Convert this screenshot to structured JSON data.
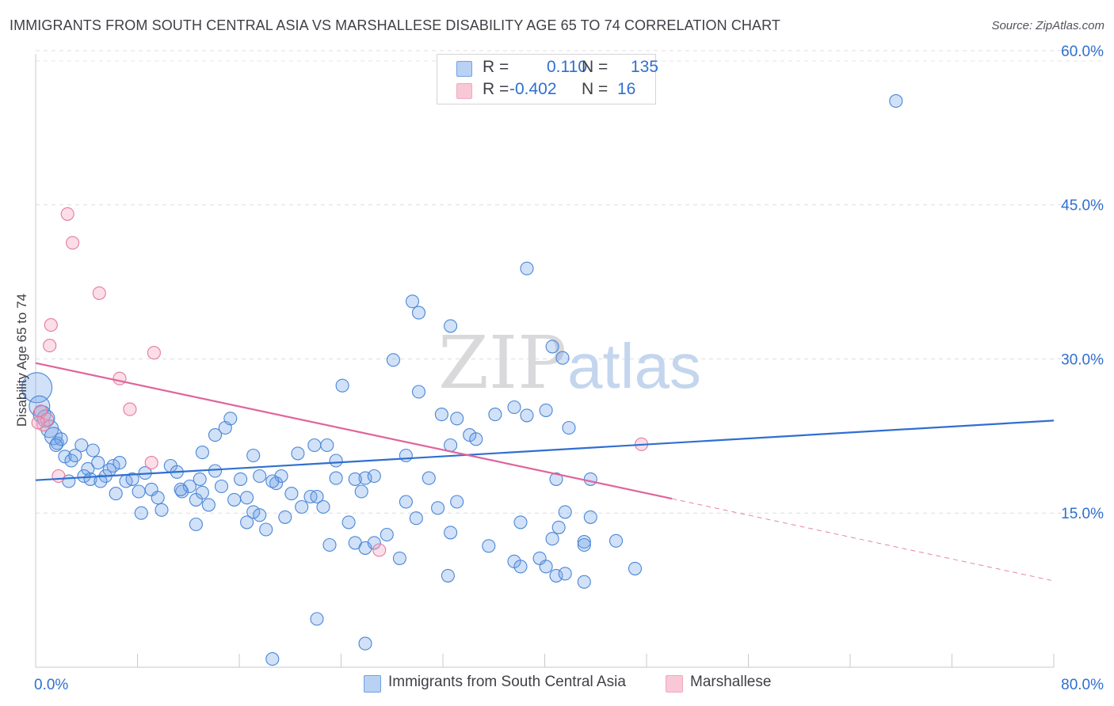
{
  "chart_data": {
    "type": "scatter",
    "title": "IMMIGRANTS FROM SOUTH CENTRAL ASIA VS MARSHALLESE DISABILITY AGE 65 TO 74 CORRELATION CHART",
    "source": "Source: ZipAtlas.com",
    "watermark": {
      "zip": "ZIP",
      "atlas": "atlas"
    },
    "ylabel": "Disability Age 65 to 74",
    "xlabel": "",
    "xlim": [
      0,
      80
    ],
    "ylim": [
      0,
      62
    ],
    "x_tick_labels": [
      "0.0%",
      "80.0%"
    ],
    "y_ticks": [
      15,
      30,
      45,
      60
    ],
    "y_tick_labels": [
      "15.0%",
      "30.0%",
      "45.0%",
      "60.0%"
    ],
    "legend": [
      {
        "r_label": "R =",
        "r_value": "0.110",
        "n_label": "N =",
        "n_value": "135"
      },
      {
        "r_label": "R =",
        "r_value": "-0.402",
        "n_label": "N =",
        "n_value": "16"
      }
    ],
    "series": [
      {
        "name": "Immigrants from South Central Asia",
        "color": "#6fa1e6",
        "stroke": "#4a86d8",
        "trend_color": "#2f6fd1",
        "trend": {
          "x0": 0,
          "y0": 18.2,
          "x1": 80,
          "y1": 24.0
        },
        "points": [
          [
            0.1,
            27.2
          ],
          [
            0.3,
            25.4
          ],
          [
            0.5,
            24.6
          ],
          [
            0.8,
            24.2
          ],
          [
            1.1,
            23.2
          ],
          [
            1.4,
            22.5
          ],
          [
            1.7,
            21.8
          ],
          [
            2.0,
            22.2
          ],
          [
            1.6,
            21.6
          ],
          [
            2.3,
            20.5
          ],
          [
            2.8,
            20.1
          ],
          [
            3.1,
            20.6
          ],
          [
            3.6,
            21.6
          ],
          [
            4.1,
            19.3
          ],
          [
            4.5,
            21.1
          ],
          [
            2.6,
            18.1
          ],
          [
            4.9,
            19.9
          ],
          [
            5.5,
            18.6
          ],
          [
            6.1,
            19.6
          ],
          [
            6.6,
            19.9
          ],
          [
            3.8,
            18.6
          ],
          [
            4.3,
            18.3
          ],
          [
            5.1,
            18.1
          ],
          [
            5.8,
            19.2
          ],
          [
            6.3,
            16.9
          ],
          [
            7.1,
            18.1
          ],
          [
            7.6,
            18.3
          ],
          [
            8.1,
            17.1
          ],
          [
            8.6,
            18.9
          ],
          [
            9.1,
            17.3
          ],
          [
            9.6,
            16.5
          ],
          [
            8.3,
            15.0
          ],
          [
            9.9,
            15.3
          ],
          [
            10.6,
            19.6
          ],
          [
            11.1,
            19.0
          ],
          [
            11.5,
            17.1
          ],
          [
            12.1,
            17.6
          ],
          [
            12.6,
            16.3
          ],
          [
            13.1,
            17.0
          ],
          [
            12.9,
            18.3
          ],
          [
            13.6,
            15.8
          ],
          [
            14.1,
            22.6
          ],
          [
            14.9,
            23.3
          ],
          [
            15.3,
            24.2
          ],
          [
            14.6,
            17.6
          ],
          [
            15.6,
            16.3
          ],
          [
            16.1,
            18.3
          ],
          [
            16.6,
            16.5
          ],
          [
            17.1,
            20.6
          ],
          [
            17.6,
            18.6
          ],
          [
            17.1,
            15.1
          ],
          [
            17.6,
            14.8
          ],
          [
            18.1,
            13.4
          ],
          [
            18.9,
            17.9
          ],
          [
            19.3,
            18.6
          ],
          [
            18.6,
            18.1
          ],
          [
            20.6,
            20.8
          ],
          [
            20.1,
            16.9
          ],
          [
            20.9,
            15.6
          ],
          [
            21.6,
            16.6
          ],
          [
            22.1,
            16.6
          ],
          [
            21.9,
            21.6
          ],
          [
            22.9,
            21.6
          ],
          [
            22.6,
            15.6
          ],
          [
            23.6,
            20.1
          ],
          [
            24.6,
            14.1
          ],
          [
            23.1,
            11.9
          ],
          [
            25.1,
            12.1
          ],
          [
            25.9,
            11.6
          ],
          [
            26.6,
            12.1
          ],
          [
            25.6,
            17.1
          ],
          [
            25.9,
            18.4
          ],
          [
            27.6,
            12.9
          ],
          [
            28.6,
            10.6
          ],
          [
            29.1,
            16.1
          ],
          [
            29.9,
            14.5
          ],
          [
            30.9,
            18.4
          ],
          [
            31.6,
            15.5
          ],
          [
            32.6,
            13.1
          ],
          [
            32.4,
            8.9
          ],
          [
            33.1,
            16.1
          ],
          [
            34.1,
            22.6
          ],
          [
            35.6,
            11.8
          ],
          [
            37.6,
            10.3
          ],
          [
            38.1,
            9.8
          ],
          [
            39.6,
            10.6
          ],
          [
            40.9,
            18.3
          ],
          [
            41.1,
            13.6
          ],
          [
            41.6,
            15.1
          ],
          [
            43.1,
            12.2
          ],
          [
            43.6,
            14.6
          ],
          [
            40.1,
            9.8
          ],
          [
            40.6,
            12.5
          ],
          [
            40.9,
            8.9
          ],
          [
            43.6,
            18.3
          ],
          [
            45.6,
            12.3
          ],
          [
            47.1,
            9.6
          ],
          [
            38.6,
            24.5
          ],
          [
            40.1,
            25.0
          ],
          [
            41.9,
            23.3
          ],
          [
            30.1,
            26.8
          ],
          [
            31.9,
            24.6
          ],
          [
            33.1,
            24.2
          ],
          [
            36.1,
            24.6
          ],
          [
            37.6,
            25.3
          ],
          [
            28.1,
            29.9
          ],
          [
            29.6,
            35.6
          ],
          [
            30.1,
            34.5
          ],
          [
            32.6,
            21.6
          ],
          [
            34.6,
            22.2
          ],
          [
            38.6,
            38.8
          ],
          [
            32.6,
            33.2
          ],
          [
            24.1,
            27.4
          ],
          [
            40.6,
            31.2
          ],
          [
            41.6,
            9.1
          ],
          [
            43.1,
            11.9
          ],
          [
            38.1,
            14.1
          ],
          [
            25.1,
            18.3
          ],
          [
            26.6,
            18.6
          ],
          [
            23.6,
            18.4
          ],
          [
            14.1,
            19.1
          ],
          [
            13.1,
            20.9
          ],
          [
            12.6,
            13.9
          ],
          [
            16.6,
            14.1
          ],
          [
            19.6,
            14.6
          ],
          [
            22.1,
            4.7
          ],
          [
            25.9,
            2.3
          ],
          [
            18.6,
            0.8
          ],
          [
            43.1,
            8.3
          ],
          [
            67.6,
            55.1
          ],
          [
            41.4,
            30.1
          ],
          [
            29.1,
            20.6
          ],
          [
            11.4,
            17.3
          ]
        ]
      },
      {
        "name": "Marshallese",
        "color": "#f4a8bf",
        "stroke": "#e67a9c",
        "trend_color": "#e0649a",
        "trend": {
          "x0": 0,
          "y0": 29.6,
          "x1": 50,
          "y1": 16.4,
          "dash_x1": 80,
          "dash_y1": 8.4
        },
        "points": [
          [
            0.4,
            24.9
          ],
          [
            0.6,
            23.6
          ],
          [
            0.9,
            24.1
          ],
          [
            1.1,
            31.3
          ],
          [
            1.2,
            33.3
          ],
          [
            2.5,
            44.1
          ],
          [
            2.9,
            41.3
          ],
          [
            5.0,
            36.4
          ],
          [
            6.6,
            28.1
          ],
          [
            7.4,
            25.1
          ],
          [
            9.3,
            30.6
          ],
          [
            1.8,
            18.6
          ],
          [
            9.1,
            19.9
          ],
          [
            27.0,
            11.4
          ],
          [
            47.6,
            21.7
          ],
          [
            0.2,
            23.8
          ]
        ]
      }
    ]
  }
}
